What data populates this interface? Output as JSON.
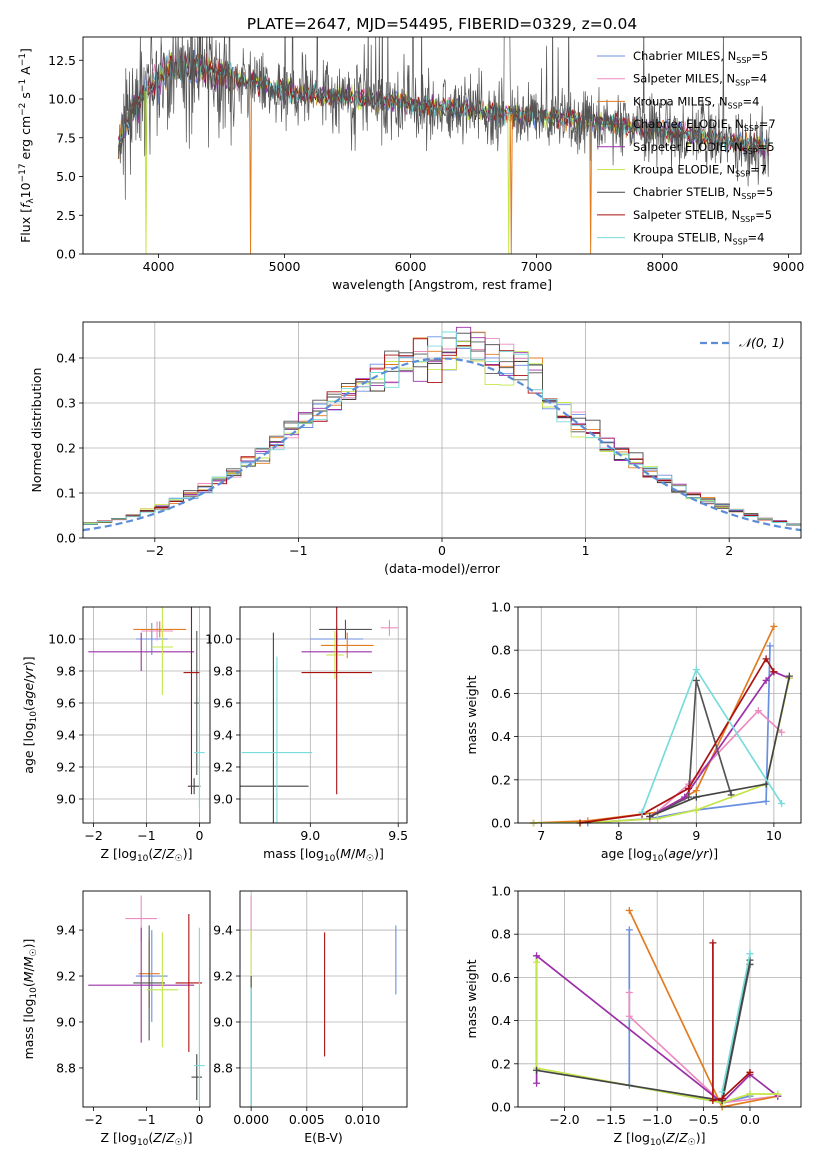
{
  "figure": {
    "title": "PLATE=2647, MJD=54495, FIBERID=0329, z=0.04"
  },
  "models": [
    {
      "name": "Chabrier MILES",
      "nssp": "5",
      "color": "#6b8fe0"
    },
    {
      "name": "Salpeter MILES",
      "nssp": "4",
      "color": "#ec8cc0"
    },
    {
      "name": "Kroupa MILES",
      "nssp": "4",
      "color": "#e27c20"
    },
    {
      "name": "Chabrier ELODIE",
      "nssp": "7",
      "color": "#555555"
    },
    {
      "name": "Salpeter ELODIE",
      "nssp": "5",
      "color": "#9b30a8"
    },
    {
      "name": "Kroupa ELODIE",
      "nssp": "7",
      "color": "#c5e64a"
    },
    {
      "name": "Chabrier STELIB",
      "nssp": "5",
      "color": "#444444"
    },
    {
      "name": "Salpeter STELIB",
      "nssp": "5",
      "color": "#aa1111"
    },
    {
      "name": "Kroupa STELIB",
      "nssp": "4",
      "color": "#78dcdc"
    }
  ],
  "chart_data": [
    {
      "type": "line",
      "id": "spectrum",
      "title": "PLATE=2647, MJD=54495, FIBERID=0329, z=0.04",
      "xlabel": "wavelength [Angstrom, rest frame]",
      "ylabel": "Flux [f_λ 10^-17 erg cm^-2 s^-1 A^-1]",
      "xlim": [
        3400,
        9100
      ],
      "ylim": [
        0,
        14
      ],
      "xticks": [
        "4000",
        "5000",
        "6000",
        "7000",
        "8000",
        "9000"
      ],
      "yticks": [
        "0.0",
        "2.5",
        "5.0",
        "7.5",
        "10.0",
        "12.5"
      ],
      "legend": "top-right",
      "series_template": {
        "x": [
          3700,
          3800,
          3900,
          4000,
          4100,
          4300,
          4500,
          4800,
          5000,
          5300,
          5600,
          5900,
          6200,
          6500,
          6800,
          7000,
          7300,
          7600,
          7900,
          8200,
          8500,
          8800
        ],
        "y": [
          7.5,
          9.5,
          10.5,
          11.5,
          12.0,
          12.0,
          11.5,
          11.0,
          10.5,
          10.2,
          10.0,
          9.8,
          9.5,
          9.3,
          9.0,
          8.9,
          8.7,
          8.4,
          8.1,
          7.8,
          7.3,
          7.0
        ]
      },
      "dips": [
        {
          "model": "Kroupa MILES",
          "x": 4730,
          "y": 0
        },
        {
          "model": "Kroupa MILES",
          "x": 6800,
          "y": 0
        },
        {
          "model": "Kroupa MILES",
          "x": 7430,
          "y": 0
        },
        {
          "model": "Kroupa ELODIE",
          "x": 3900,
          "y": 0
        },
        {
          "model": "Kroupa ELODIE",
          "x": 6780,
          "y": 0
        }
      ]
    },
    {
      "type": "line",
      "id": "residuals",
      "xlabel": "(data-model)/error",
      "ylabel": "Normed distribution",
      "xlim": [
        -2.5,
        2.5
      ],
      "ylim": [
        0,
        0.48
      ],
      "xticks": [
        "−2",
        "−1",
        "0",
        "1",
        "2"
      ],
      "yticks": [
        "0.0",
        "0.1",
        "0.2",
        "0.3",
        "0.4"
      ],
      "legend": "top-right",
      "reference": {
        "label": "𝒩(0, 1)",
        "mean": 0,
        "sigma": 1
      },
      "bin_width": 0.1
    },
    {
      "type": "scatter",
      "id": "age_vs_Z",
      "xlabel": "Z [log10(Z/Z☉)]",
      "ylabel": "age [log10(age/yr)]",
      "xlim": [
        -2.2,
        0.2
      ],
      "ylim": [
        8.85,
        10.2
      ],
      "xticks": [
        "−2",
        "−1",
        "0"
      ],
      "yticks": [
        "9.0",
        "9.2",
        "9.4",
        "9.6",
        "9.8",
        "10.0"
      ],
      "points": [
        {
          "m": 0,
          "x": -0.9,
          "y": 10.0,
          "xerr": 0.3,
          "yerr": 0.1
        },
        {
          "m": 1,
          "x": -0.8,
          "y": 10.05,
          "xerr": 0.3,
          "yerr": 0.06
        },
        {
          "m": 2,
          "x": -0.75,
          "y": 10.06,
          "xerr": 0.5,
          "yerr": 0.05
        },
        {
          "m": 3,
          "x": -0.05,
          "y": 9.6,
          "xerr": 0.05,
          "yerr": 0.45
        },
        {
          "m": 4,
          "x": -1.1,
          "y": 9.92,
          "xerr": 1.0,
          "yerr": 0.12
        },
        {
          "m": 5,
          "x": -0.7,
          "y": 9.95,
          "xerr": 0.2,
          "yerr": 0.3
        },
        {
          "m": 6,
          "x": -0.1,
          "y": 9.08,
          "xerr": 0.12,
          "yerr": 0.05
        },
        {
          "m": 7,
          "x": -0.15,
          "y": 9.79,
          "xerr": 0.15,
          "yerr": 0.76
        },
        {
          "m": 8,
          "x": 0.0,
          "y": 9.29,
          "xerr": 0.1,
          "yerr": 0.35
        }
      ]
    },
    {
      "type": "scatter",
      "id": "age_vs_mass",
      "xlabel": "mass [log10(M/M☉)]",
      "ylabel": "",
      "xlim": [
        8.6,
        9.55
      ],
      "ylim": [
        8.85,
        10.2
      ],
      "xticks": [
        "9.0",
        "9.5"
      ],
      "yticks": [
        "9.0",
        "9.2",
        "9.4",
        "9.6",
        "9.8",
        "10.0"
      ],
      "points": [
        {
          "m": 0,
          "x": 9.15,
          "y": 10.0,
          "xerr": 0.15,
          "yerr": 0.08
        },
        {
          "m": 1,
          "x": 9.45,
          "y": 10.07,
          "xerr": 0.05,
          "yerr": 0.05
        },
        {
          "m": 2,
          "x": 9.21,
          "y": 9.96,
          "xerr": 0.15,
          "yerr": 0.08
        },
        {
          "m": 3,
          "x": 9.2,
          "y": 10.06,
          "xerr": 0.15,
          "yerr": 0.06
        },
        {
          "m": 4,
          "x": 9.15,
          "y": 9.92,
          "xerr": 0.2,
          "yerr": 0.12
        },
        {
          "m": 5,
          "x": 9.14,
          "y": 9.9,
          "xerr": 0.05,
          "yerr": 0.15
        },
        {
          "m": 6,
          "x": 8.79,
          "y": 9.08,
          "xerr": 0.2,
          "yerr": 0.96
        },
        {
          "m": 7,
          "x": 9.15,
          "y": 9.79,
          "xerr": 0.2,
          "yerr": 0.76
        },
        {
          "m": 8,
          "x": 8.81,
          "y": 9.29,
          "xerr": 0.2,
          "yerr": 0.6
        }
      ]
    },
    {
      "type": "line",
      "id": "weight_vs_age",
      "xlabel": "age [log10(age/yr)]",
      "ylabel": "mass weight",
      "xlim": [
        6.7,
        10.35
      ],
      "ylim": [
        0,
        1.0
      ],
      "xticks": [
        "7",
        "8",
        "9",
        "10"
      ],
      "yticks": [
        "0.0",
        "0.2",
        "0.4",
        "0.6",
        "0.8",
        "1.0"
      ],
      "series": [
        {
          "m": 0,
          "x": [
            6.9,
            7.6,
            8.4,
            9.0,
            9.9,
            9.95
          ],
          "y": [
            0.0,
            0.0,
            0.02,
            0.06,
            0.1,
            0.82
          ]
        },
        {
          "m": 1,
          "x": [
            8.4,
            8.9,
            9.8,
            10.1
          ],
          "y": [
            0.02,
            0.18,
            0.52,
            0.42
          ]
        },
        {
          "m": 2,
          "x": [
            6.9,
            7.6,
            8.5,
            9.0,
            10.0
          ],
          "y": [
            0.0,
            0.01,
            0.05,
            0.15,
            0.91
          ]
        },
        {
          "m": 3,
          "x": [
            8.4,
            8.9,
            9.0,
            9.45
          ],
          "y": [
            0.03,
            0.12,
            0.66,
            0.13
          ]
        },
        {
          "m": 4,
          "x": [
            8.4,
            8.85,
            9.9,
            10.0,
            10.2
          ],
          "y": [
            0.03,
            0.12,
            0.66,
            0.7,
            0.67
          ]
        },
        {
          "m": 5,
          "x": [
            6.9,
            7.5,
            8.5,
            9.0,
            9.9,
            10.2
          ],
          "y": [
            0.0,
            0.0,
            0.02,
            0.06,
            0.18,
            0.67
          ]
        },
        {
          "m": 6,
          "x": [
            8.4,
            9.0,
            9.9,
            10.2
          ],
          "y": [
            0.03,
            0.12,
            0.18,
            0.68
          ]
        },
        {
          "m": 7,
          "x": [
            7.5,
            8.3,
            8.9,
            9.9,
            10.0
          ],
          "y": [
            0.0,
            0.04,
            0.16,
            0.76,
            0.7
          ]
        },
        {
          "m": 8,
          "x": [
            8.3,
            9.0,
            10.1
          ],
          "y": [
            0.05,
            0.71,
            0.09
          ]
        }
      ]
    },
    {
      "type": "scatter",
      "id": "mass_vs_Z",
      "xlabel": "Z [log10(Z/Z☉)]",
      "ylabel": "mass [log10(M/M☉)]",
      "xlim": [
        -2.2,
        0.2
      ],
      "ylim": [
        8.63,
        9.57
      ],
      "xticks": [
        "−2",
        "−1",
        "0"
      ],
      "yticks": [
        "8.8",
        "9.0",
        "9.2",
        "9.4"
      ],
      "points": [
        {
          "m": 0,
          "x": -0.9,
          "y": 9.2,
          "xerr": 0.3,
          "yerr": 0.2
        },
        {
          "m": 1,
          "x": -1.1,
          "y": 9.45,
          "xerr": 0.3,
          "yerr": 0.1
        },
        {
          "m": 2,
          "x": -0.95,
          "y": 9.21,
          "xerr": 0.2,
          "yerr": 0.15
        },
        {
          "m": 3,
          "x": -0.95,
          "y": 9.17,
          "xerr": 0.3,
          "yerr": 0.25
        },
        {
          "m": 4,
          "x": -1.1,
          "y": 9.16,
          "xerr": 1.0,
          "yerr": 0.25
        },
        {
          "m": 5,
          "x": -0.7,
          "y": 9.14,
          "xerr": 0.3,
          "yerr": 0.25
        },
        {
          "m": 6,
          "x": -0.05,
          "y": 8.76,
          "xerr": 0.1,
          "yerr": 0.1
        },
        {
          "m": 7,
          "x": -0.2,
          "y": 9.17,
          "xerr": 0.25,
          "yerr": 0.3
        },
        {
          "m": 8,
          "x": 0.0,
          "y": 8.81,
          "xerr": 0.1,
          "yerr": 0.6
        }
      ]
    },
    {
      "type": "scatter",
      "id": "mass_vs_ebv",
      "xlabel": "E(B-V)",
      "ylabel": "",
      "xlim": [
        -0.001,
        0.014
      ],
      "ylim": [
        8.63,
        9.57
      ],
      "xticks": [
        "0.000",
        "0.005",
        "0.010"
      ],
      "yticks": [
        "8.8",
        "9.0",
        "9.2",
        "9.4"
      ],
      "points": [
        {
          "m": 0,
          "x": 0.013,
          "y": 9.27,
          "xerr": 0.0,
          "yerr": 0.15
        },
        {
          "m": 1,
          "x": 0.0,
          "y": 9.45,
          "xerr": 0.0,
          "yerr": 0.1
        },
        {
          "m": 5,
          "x": 0.0,
          "y": 9.2,
          "xerr": 0.0,
          "yerr": 0.2
        },
        {
          "m": 6,
          "x": 0.0,
          "y": 8.9,
          "xerr": 0.0,
          "yerr": 0.3
        },
        {
          "m": 7,
          "x": 0.0066,
          "y": 9.12,
          "xerr": 0.0,
          "yerr": 0.27
        },
        {
          "m": 8,
          "x": 0.0,
          "y": 8.85,
          "xerr": 0.0,
          "yerr": 0.3
        }
      ]
    },
    {
      "type": "line",
      "id": "weight_vs_Z",
      "xlabel": "Z [log10(Z/Z☉)]",
      "ylabel": "mass weight",
      "xlim": [
        -2.5,
        0.55
      ],
      "ylim": [
        0,
        1.0
      ],
      "xticks": [
        "−2.0",
        "−1.5",
        "−1.0",
        "−0.5",
        "0.0"
      ],
      "yticks": [
        "0.0",
        "0.2",
        "0.4",
        "0.6",
        "0.8",
        "1.0"
      ],
      "series": [
        {
          "m": 0,
          "x": [
            -1.3,
            -1.3,
            -0.3,
            0.0,
            0.0
          ],
          "y": [
            0.82,
            0.1,
            0.02,
            0.05,
            0.06
          ]
        },
        {
          "m": 1,
          "x": [
            -1.3,
            -1.3,
            -0.3,
            0.3
          ],
          "y": [
            0.53,
            0.42,
            0.02,
            0.05
          ]
        },
        {
          "m": 2,
          "x": [
            -1.3,
            -0.3,
            0.3
          ],
          "y": [
            0.91,
            0.0,
            0.05
          ]
        },
        {
          "m": 3,
          "x": [
            -0.3,
            0.0,
            0.0
          ],
          "y": [
            0.02,
            0.66,
            0.66
          ]
        },
        {
          "m": 4,
          "x": [
            -2.3,
            -2.3,
            -0.3,
            0.0,
            0.3
          ],
          "y": [
            0.11,
            0.7,
            0.02,
            0.15,
            0.05
          ]
        },
        {
          "m": 5,
          "x": [
            -2.3,
            -2.3,
            -0.3,
            0.0,
            0.3
          ],
          "y": [
            0.67,
            0.18,
            0.02,
            0.06,
            0.06
          ]
        },
        {
          "m": 6,
          "x": [
            -2.3,
            -0.3,
            0.0
          ],
          "y": [
            0.17,
            0.03,
            0.68
          ]
        },
        {
          "m": 7,
          "x": [
            -0.4,
            -0.4,
            -0.3,
            0.0,
            0.0
          ],
          "y": [
            0.76,
            0.03,
            0.04,
            0.16,
            0.16
          ]
        },
        {
          "m": 8,
          "x": [
            -0.3,
            0.0,
            0.0
          ],
          "y": [
            0.07,
            0.71,
            0.71
          ]
        }
      ]
    }
  ]
}
